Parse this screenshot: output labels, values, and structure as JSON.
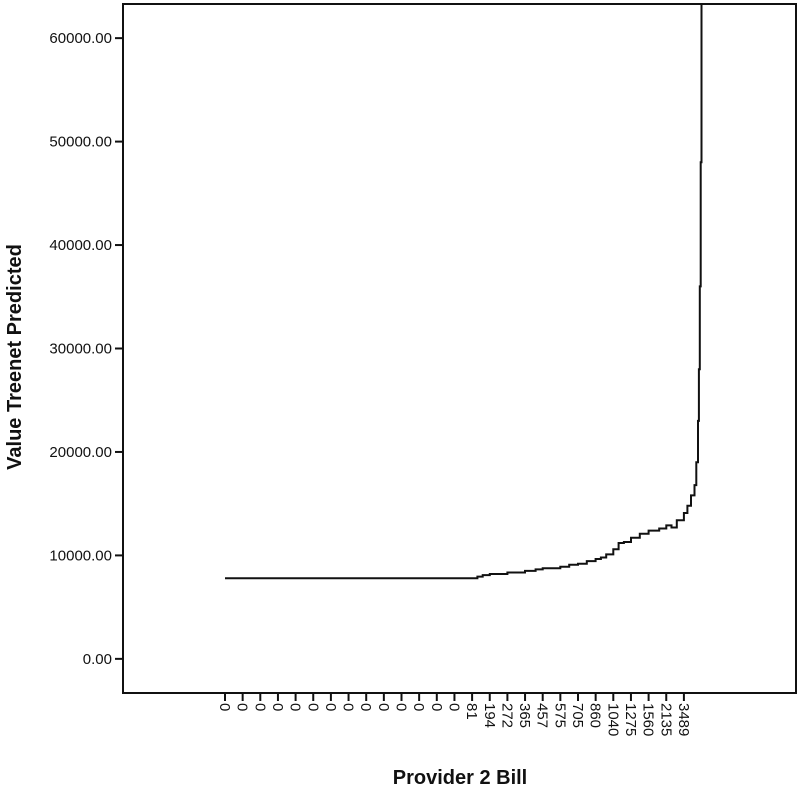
{
  "chart_data": {
    "type": "line",
    "title": "",
    "xlabel": "Provider 2 Bill",
    "ylabel": "Value Treenet Predicted",
    "x_axis_kind": "category",
    "x_tick_labels": [
      "0",
      "0",
      "0",
      "0",
      "0",
      "0",
      "0",
      "0",
      "0",
      "0",
      "0",
      "0",
      "0",
      "0",
      "81",
      "194",
      "272",
      "365",
      "457",
      "575",
      "705",
      "860",
      "1040",
      "1275",
      "1560",
      "2135",
      "3489"
    ],
    "ylim": [
      -3300,
      63300
    ],
    "y_ticks": [
      0,
      10000,
      20000,
      30000,
      40000,
      50000,
      60000
    ],
    "y_tick_labels": [
      "0.00",
      "10000.00",
      "20000.00",
      "30000.00",
      "40000.00",
      "50000.00",
      "60000.00"
    ],
    "grid": false,
    "legend": "none",
    "line_color": "#111111",
    "series": [
      {
        "x": [
          0,
          14,
          14.3,
          14.6,
          15,
          16,
          17,
          17.6,
          18,
          19,
          19.5,
          20,
          20.5,
          21,
          21.3,
          21.6,
          22,
          22.3,
          22.6,
          23,
          23.5,
          24,
          24.6,
          25,
          25.3,
          25.6,
          26,
          26.2,
          26.4,
          26.6,
          26.7,
          26.8,
          26.85,
          26.9,
          26.95,
          27
        ],
        "y": [
          7800,
          7800,
          7950,
          8100,
          8200,
          8350,
          8500,
          8650,
          8750,
          8900,
          9100,
          9200,
          9450,
          9650,
          9800,
          10100,
          10600,
          11200,
          11300,
          11700,
          12100,
          12400,
          12600,
          12900,
          12700,
          13400,
          14100,
          14800,
          15800,
          16800,
          19000,
          23000,
          28000,
          36000,
          48000,
          63300
        ]
      }
    ]
  }
}
